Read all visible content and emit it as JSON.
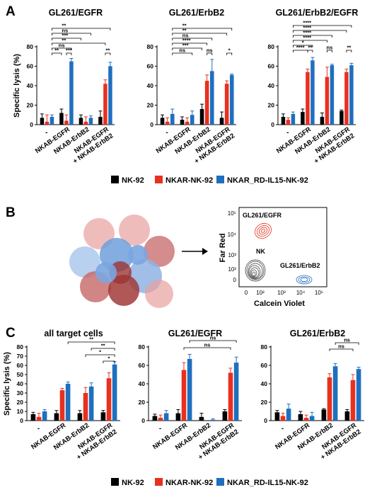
{
  "panels": {
    "a": {
      "letter": "A"
    },
    "b": {
      "letter": "B"
    },
    "c": {
      "letter": "C"
    }
  },
  "colors": {
    "NK-92": "#000000",
    "NKAR-NK-92": "#e8301f",
    "NKAR_RD-IL15-NK-92": "#1f6fbf"
  },
  "legends": [
    {
      "items": [
        "NK-92",
        "NKAR-NK-92",
        "NKAR_RD-IL15-NK-92"
      ]
    },
    {
      "items": [
        "NK-92",
        "NKAR-NK-92",
        "NKAR_RD-IL15-NK-92"
      ]
    }
  ],
  "flow": {
    "xlabel": "Calcein Violet",
    "ylabel": "Far Red",
    "xticks": [
      "0",
      "10²",
      "10³",
      "10⁴",
      "10⁵"
    ],
    "yticks": [
      "0",
      "10²",
      "10³",
      "10⁴",
      "10⁵"
    ],
    "populations": [
      {
        "label": "GL261/EGFR",
        "color": "#e8301f"
      },
      {
        "label": "NK",
        "color": "#333333"
      },
      {
        "label": "GL261/ErbB2",
        "color": "#1f6fbf"
      }
    ]
  },
  "chart_data": [
    {
      "type": "bar",
      "panel": "A",
      "title": "GL261/EGFR",
      "ylabel": "Specific lysis  (%)",
      "ylim": [
        0,
        80
      ],
      "yticks": [
        "0",
        "20",
        "40",
        "60",
        "80"
      ],
      "categories": [
        "-",
        "NKAB-EGFR",
        "NKAB-ErbB2",
        "NKAB-EGFR\n+ NKAB-ErbB2"
      ],
      "series": [
        {
          "name": "NK-92",
          "values": [
            7,
            12,
            7,
            8
          ],
          "errors": [
            4,
            4,
            3,
            6
          ]
        },
        {
          "name": "NKAR-NK-92",
          "values": [
            3,
            4,
            3,
            42
          ],
          "errors": [
            7,
            6,
            5,
            4
          ]
        },
        {
          "name": "NKAR_RD-IL15-NK-92",
          "values": [
            8,
            65,
            7,
            60
          ],
          "errors": [
            2,
            3,
            2,
            4
          ]
        }
      ],
      "significance": [
        "**",
        "ns",
        "***",
        "**",
        "ns",
        "**",
        "***",
        "**"
      ]
    },
    {
      "type": "bar",
      "panel": "A",
      "title": "GL261/ErbB2",
      "ylabel": "",
      "ylim": [
        0,
        80
      ],
      "yticks": [
        "0",
        "20",
        "40",
        "60",
        "80"
      ],
      "categories": [
        "-",
        "NKAB-EGFR",
        "NKAB-ErbB2",
        "NKAB-EGFR\n+ NKAB-ErbB2"
      ],
      "series": [
        {
          "name": "NK-92",
          "values": [
            7,
            5,
            16,
            7
          ],
          "errors": [
            3,
            3,
            5,
            6
          ]
        },
        {
          "name": "NKAR-NK-92",
          "values": [
            3,
            3,
            45,
            42
          ],
          "errors": [
            4,
            4,
            6,
            3
          ]
        },
        {
          "name": "NKAR_RD-IL15-NK-92",
          "values": [
            11,
            10,
            55,
            51
          ],
          "errors": [
            5,
            4,
            12,
            1
          ]
        }
      ],
      "significance": [
        "**",
        "**",
        "ns",
        "****",
        "***",
        "ns",
        "ns",
        "*"
      ]
    },
    {
      "type": "bar",
      "panel": "A",
      "title": "GL261/ErbB2/EGFR",
      "ylabel": "",
      "ylim": [
        0,
        80
      ],
      "yticks": [
        "0",
        "20",
        "40",
        "60",
        "80"
      ],
      "categories": [
        "-",
        "NKAB-EGFR",
        "NKAB-ErbB2",
        "NKAB-EGFR\n+ NKAB-ErbB2"
      ],
      "series": [
        {
          "name": "NK-92",
          "values": [
            8,
            13,
            8,
            14
          ],
          "errors": [
            3,
            3,
            4,
            1
          ]
        },
        {
          "name": "NKAR-NK-92",
          "values": [
            5,
            54,
            49,
            54
          ],
          "errors": [
            2,
            3,
            10,
            3
          ]
        },
        {
          "name": "NKAR_RD-IL15-NK-92",
          "values": [
            11,
            66,
            61,
            61
          ],
          "errors": [
            2,
            3,
            1,
            2
          ]
        }
      ],
      "significance": [
        "****",
        "****",
        "****",
        "****",
        "*",
        "****",
        "**",
        "ns",
        "**"
      ]
    },
    {
      "type": "bar",
      "panel": "C",
      "title": "all target cells",
      "ylabel": "Specific lysis  (%)",
      "ylim": [
        0,
        80
      ],
      "yticks": [
        "0",
        "10",
        "20",
        "30",
        "40",
        "50",
        "60",
        "70",
        "80"
      ],
      "categories": [
        "-",
        "NKAB-EGFR",
        "NKAB-ErbB2",
        "NKAB-EGFR\n+ NKAB-ErbB2"
      ],
      "series": [
        {
          "name": "NK-92",
          "values": [
            7,
            8,
            8,
            9
          ],
          "errors": [
            2,
            3,
            3,
            2
          ]
        },
        {
          "name": "NKAR-NK-92",
          "values": [
            4,
            33,
            30,
            46
          ],
          "errors": [
            4,
            2,
            6,
            6
          ]
        },
        {
          "name": "NKAR_RD-IL15-NK-92",
          "values": [
            10,
            40,
            37,
            61
          ],
          "errors": [
            2,
            2,
            4,
            3
          ]
        }
      ],
      "significance": [
        "**",
        "**",
        "*",
        "*"
      ]
    },
    {
      "type": "bar",
      "panel": "C",
      "title": "GL261/EGFR",
      "ylabel": "",
      "ylim": [
        0,
        80
      ],
      "yticks": [
        "0",
        "20",
        "40",
        "60",
        "80"
      ],
      "categories": [
        "-",
        "NKAB-EGFR",
        "NKAB-ErbB2",
        "NKAB-EGFR\n+ NKAB-ErbB2"
      ],
      "series": [
        {
          "name": "NK-92",
          "values": [
            5,
            8,
            4,
            10
          ],
          "errors": [
            2,
            4,
            4,
            2
          ]
        },
        {
          "name": "NKAR-NK-92",
          "values": [
            3,
            55,
            0,
            52
          ],
          "errors": [
            3,
            8,
            0,
            5
          ]
        },
        {
          "name": "NKAR_RD-IL15-NK-92",
          "values": [
            8,
            67,
            1,
            63
          ],
          "errors": [
            3,
            5,
            1,
            6
          ]
        }
      ],
      "significance": [
        "ns",
        "ns"
      ]
    },
    {
      "type": "bar",
      "panel": "C",
      "title": "GL261/ErbB2",
      "ylabel": "",
      "ylim": [
        0,
        80
      ],
      "yticks": [
        "0",
        "20",
        "40",
        "60",
        "80"
      ],
      "categories": [
        "-",
        "NKAB-EGFR",
        "NKAB-ErbB2",
        "NKAB-EGFR\n+ NKAB-ErbB2"
      ],
      "series": [
        {
          "name": "NK-92",
          "values": [
            9,
            7,
            12,
            10
          ],
          "errors": [
            2,
            3,
            1,
            2
          ]
        },
        {
          "name": "NKAR-NK-92",
          "values": [
            5,
            3,
            47,
            44
          ],
          "errors": [
            3,
            3,
            4,
            6
          ]
        },
        {
          "name": "NKAR_RD-IL15-NK-92",
          "values": [
            13,
            5,
            59,
            56
          ],
          "errors": [
            5,
            4,
            3,
            2
          ]
        }
      ],
      "significance": [
        "ns",
        "ns"
      ]
    }
  ]
}
